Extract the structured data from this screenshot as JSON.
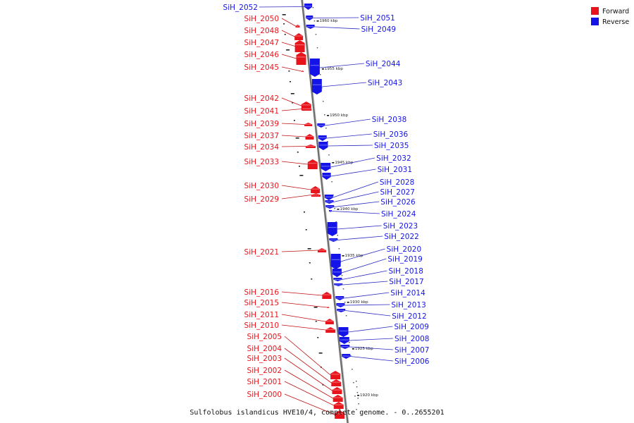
{
  "caption": "Sulfolobus islandicus HVE10/4, complete genome. - 0..2655201",
  "legend": [
    {
      "label": "Forward",
      "color": "#e8141c"
    },
    {
      "label": "Reverse",
      "color": "#1414e8"
    }
  ],
  "colors": {
    "forward": "#e8141c",
    "forward_line": "#c01010",
    "reverse": "#1414e8",
    "reverse_line": "#2a2ac0",
    "backbone": "#9a9a9a"
  },
  "ticks": [
    {
      "label": "1960 kbp",
      "kbp": 1960
    },
    {
      "label": "1955 kbp",
      "kbp": 1955
    },
    {
      "label": "1950 kbp",
      "kbp": 1950
    },
    {
      "label": "1945 kbp",
      "kbp": 1945
    },
    {
      "label": "1940 kbp",
      "kbp": 1940
    },
    {
      "label": "1935 kbp",
      "kbp": 1935
    },
    {
      "label": "1930 kbp",
      "kbp": 1930
    },
    {
      "label": "1925 kbp",
      "kbp": 1925
    },
    {
      "label": "1920 kbp",
      "kbp": 1920
    }
  ],
  "genes_forward": [
    "SiH_2050",
    "SiH_2048",
    "SiH_2047",
    "SiH_2046",
    "SiH_2045",
    "SiH_2042",
    "SiH_2041",
    "SiH_2039",
    "SiH_2037",
    "SiH_2034",
    "SiH_2033",
    "SiH_2030",
    "SiH_2029",
    "SiH_2021",
    "SiH_2016",
    "SiH_2015",
    "SiH_2011",
    "SiH_2010",
    "SiH_2005",
    "SiH_2004",
    "SiH_2003",
    "SiH_2002",
    "SiH_2001",
    "SiH_2000"
  ],
  "genes_reverse": [
    "SiH_2052",
    "SiH_2051",
    "SiH_2049",
    "SiH_2044",
    "SiH_2043",
    "SiH_2038",
    "SiH_2036",
    "SiH_2035",
    "SiH_2032",
    "SiH_2031",
    "SiH_2028",
    "SiH_2027",
    "SiH_2026",
    "SiH_2024",
    "SiH_2023",
    "SiH_2022",
    "SiH_2020",
    "SiH_2019",
    "SiH_2018",
    "SiH_2017",
    "SiH_2014",
    "SiH_2013",
    "SiH_2012",
    "SiH_2009",
    "SiH_2008",
    "SiH_2007",
    "SiH_2006"
  ]
}
